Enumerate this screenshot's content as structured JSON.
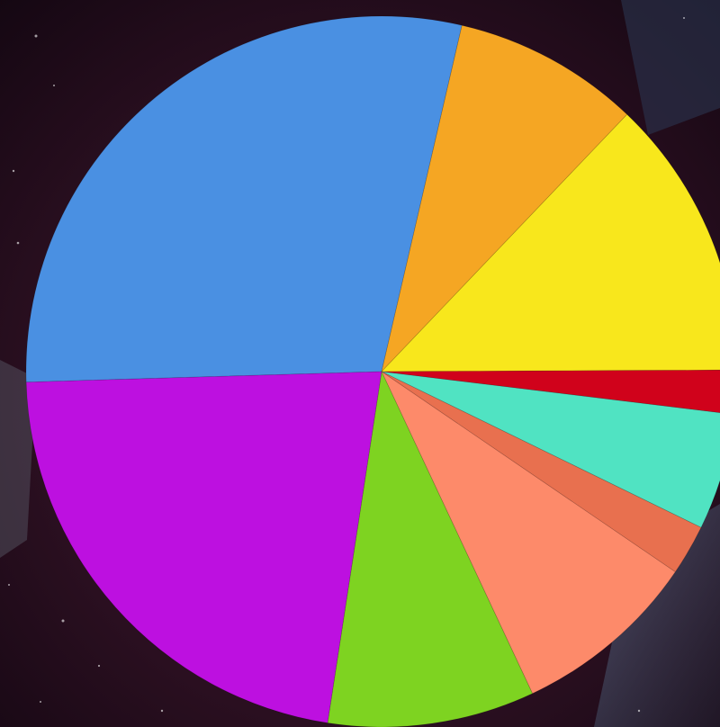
{
  "chart_data": {
    "type": "pie",
    "values": [
      29.1,
      8.5,
      12.8,
      2.0,
      5.3,
      2.3,
      8.5,
      9.4,
      22.1
    ],
    "colors": [
      "#4a90e2",
      "#f5a623",
      "#f8e71c",
      "#d0021b",
      "#50e3c2",
      "#e8704f",
      "#fd8a6a",
      "#7ed321",
      "#bd10e0"
    ]
  }
}
